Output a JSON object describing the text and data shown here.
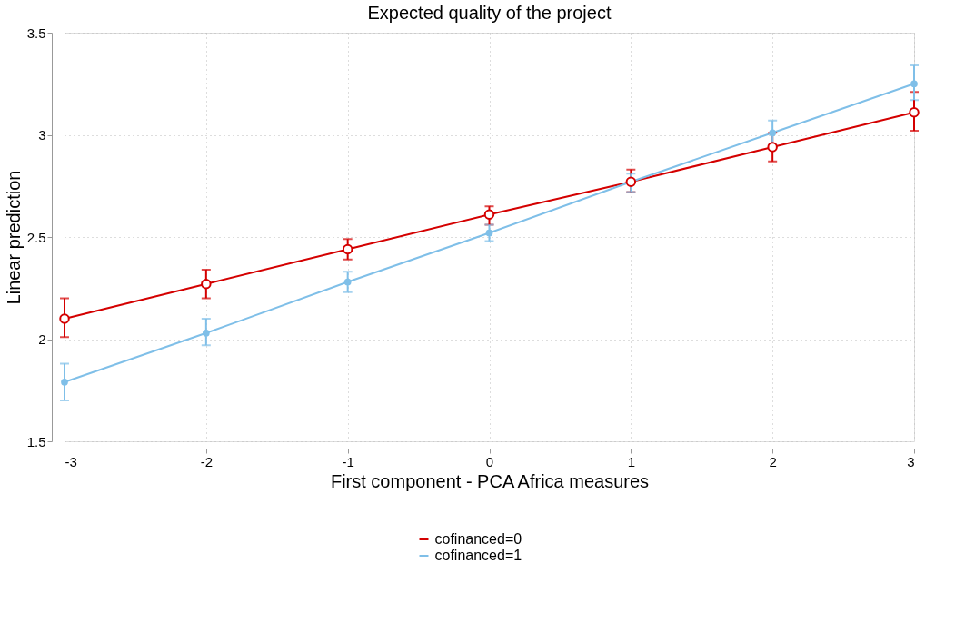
{
  "chart_data": {
    "type": "line",
    "title": "Expected quality of the project",
    "xlabel": "First component - PCA Africa measures",
    "ylabel": "Linear prediction",
    "x": [
      -3,
      -2,
      -1,
      0,
      1,
      2,
      3
    ],
    "series": [
      {
        "name": "cofinanced=0",
        "color": "#d40000",
        "values": [
          2.1,
          2.27,
          2.44,
          2.61,
          2.77,
          2.94,
          3.11
        ],
        "errors": [
          [
            2.01,
            2.2
          ],
          [
            2.2,
            2.34
          ],
          [
            2.39,
            2.49
          ],
          [
            2.56,
            2.65
          ],
          [
            2.72,
            2.83
          ],
          [
            2.87,
            3.01
          ],
          [
            3.02,
            3.21
          ]
        ]
      },
      {
        "name": "cofinanced=1",
        "color": "#7fbfe8",
        "values": [
          1.79,
          2.03,
          2.28,
          2.52,
          2.77,
          3.01,
          3.25
        ],
        "errors": [
          [
            1.7,
            1.88
          ],
          [
            1.97,
            2.1
          ],
          [
            2.23,
            2.33
          ],
          [
            2.48,
            2.56
          ],
          [
            2.72,
            2.81
          ],
          [
            2.95,
            3.07
          ],
          [
            3.17,
            3.34
          ]
        ]
      }
    ],
    "xlim": [
      -3,
      3
    ],
    "ylim": [
      1.5,
      3.5
    ],
    "xticks": [
      -3,
      -2,
      -1,
      0,
      1,
      2,
      3
    ],
    "yticks": [
      1.5,
      2,
      2.5,
      3,
      3.5
    ],
    "grid": true,
    "legend": "bottom",
    "marker": "circle",
    "line_style": "solid"
  }
}
